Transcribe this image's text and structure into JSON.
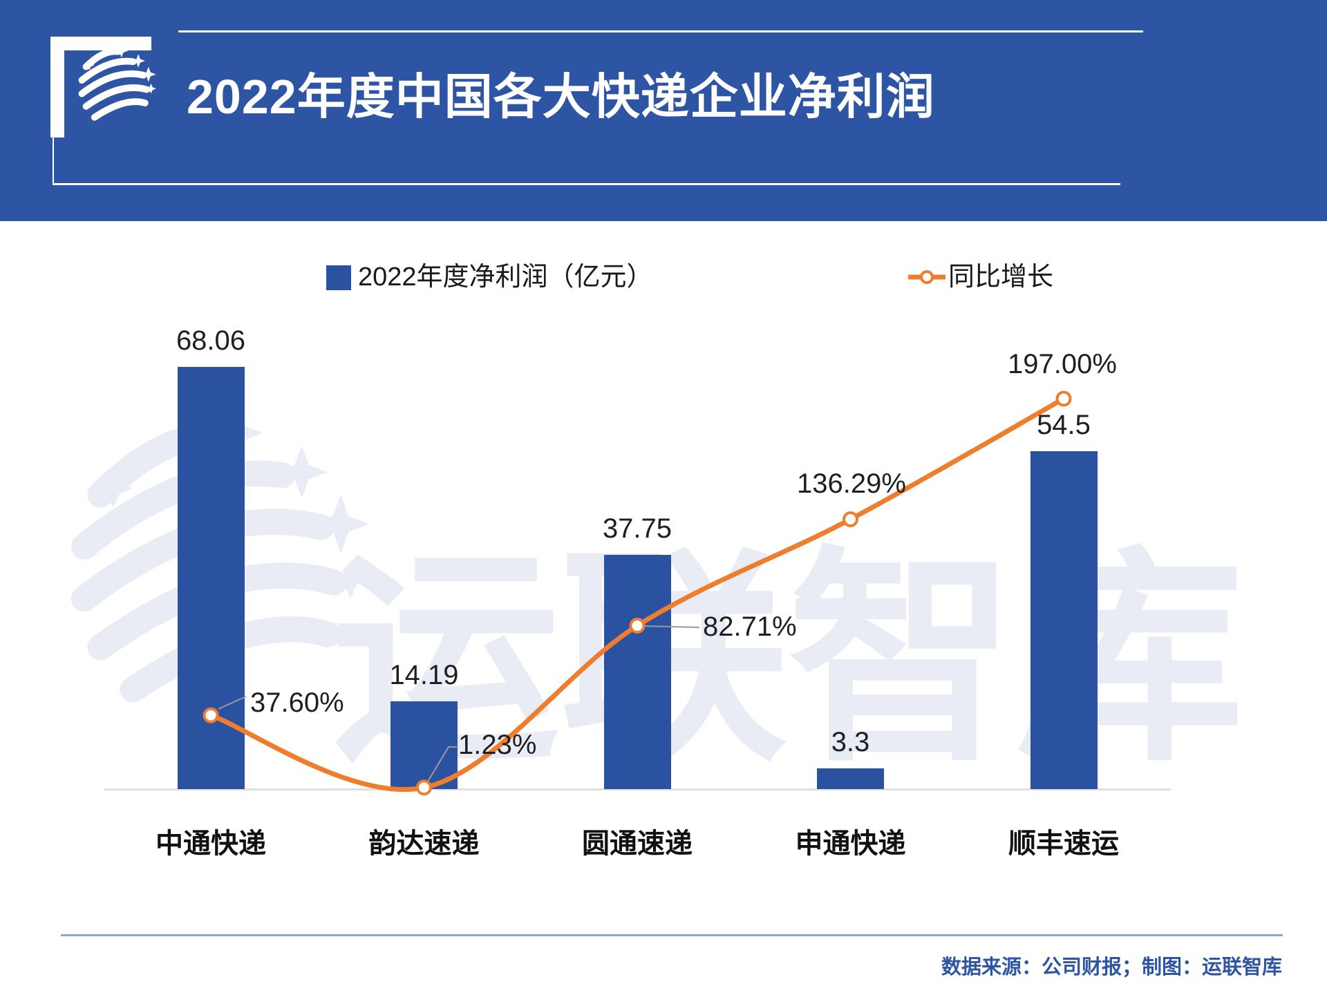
{
  "header": {
    "title": "2022年度中国各大快递企业净利润"
  },
  "legend": {
    "bar_label": "2022年度净利润（亿元）",
    "line_label": "同比增长"
  },
  "watermark": {
    "text": "运联智库"
  },
  "footer": {
    "source": "数据来源：公司财报；制图：运联智库"
  },
  "colors": {
    "banner_blue": "#2E55A4",
    "bar_blue": "#2B52A0",
    "line_orange": "#EE7D2E",
    "watermark": "#EAECF5",
    "baseline_gray": "#E0E0E0",
    "leader_gray": "#9B9B9B",
    "footer_line": "#8EA4CB",
    "footer_text": "#2E55A4"
  },
  "chart_data": {
    "type": "combo",
    "title": "2022年度中国各大快递企业净利润",
    "categories": [
      "中通快递",
      "韵达速递",
      "圆通速递",
      "申通快递",
      "顺丰速运"
    ],
    "series": [
      {
        "name": "2022年度净利润（亿元）",
        "type": "bar",
        "values": [
          68.06,
          14.19,
          37.75,
          3.3,
          54.5
        ],
        "labels": [
          "68.06",
          "14.19",
          "37.75",
          "3.3",
          "54.5"
        ],
        "color": "#2B52A0"
      },
      {
        "name": "同比增长",
        "type": "line",
        "unit": "%",
        "values": [
          37.6,
          1.23,
          82.71,
          136.29,
          197.0
        ],
        "labels": [
          "37.60%",
          "1.23%",
          "82.71%",
          "136.29%",
          "197.00%"
        ],
        "color": "#EE7D2E",
        "marker": "hollow-circle",
        "smooth": true
      }
    ],
    "xlabel": "",
    "ylabel": "",
    "axes_visible": false,
    "grid": false,
    "legend_position": "top"
  }
}
